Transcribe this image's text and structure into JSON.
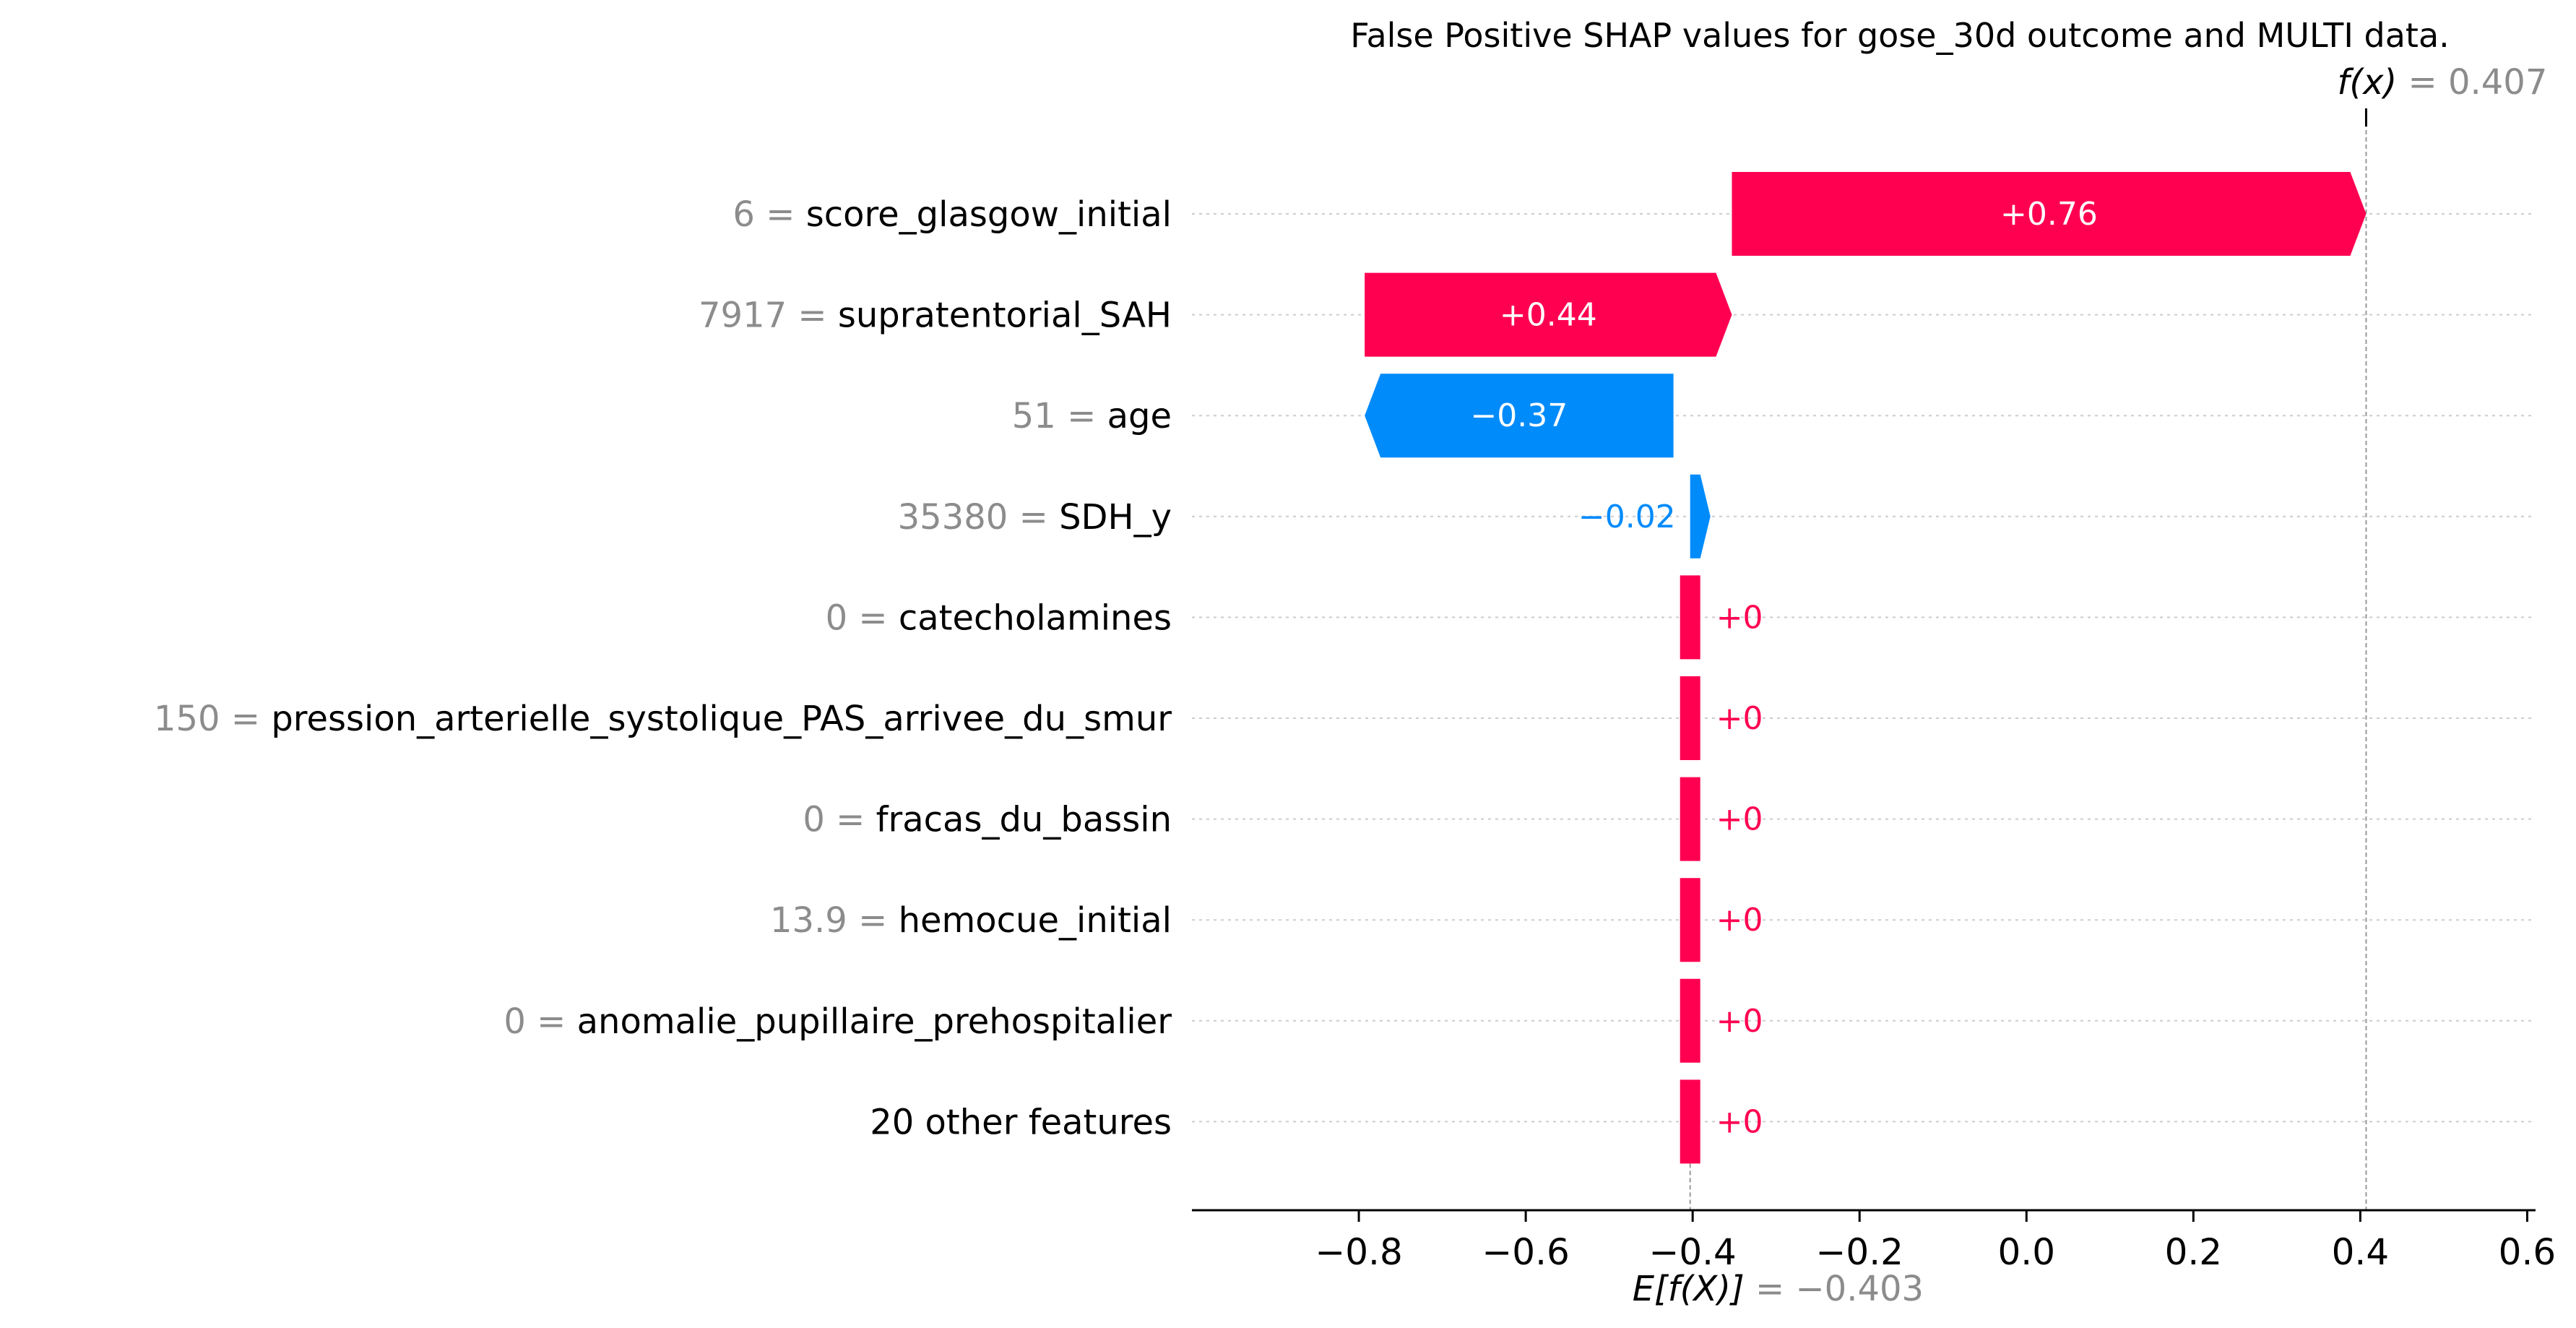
{
  "chart_data": {
    "type": "waterfall",
    "title": "False Positive SHAP values for gose_30d outcome and MULTI data.",
    "fx_label": "f(x)",
    "fx_value": "0.407",
    "fx": 0.407,
    "base_label": "E[f(X)]",
    "base_value_text": "−0.403",
    "base": -0.403,
    "xlim": [
      -1.0,
      0.61
    ],
    "xticks": [
      -0.8,
      -0.6,
      -0.4,
      -0.2,
      0.0,
      0.2,
      0.4,
      0.6
    ],
    "xtick_labels": [
      "−0.8",
      "−0.6",
      "−0.4",
      "−0.2",
      "0.0",
      "0.2",
      "0.4",
      "0.6"
    ],
    "features": [
      {
        "value": "6",
        "name": "score_glasgow_initial",
        "shap": 0.76,
        "label": "+0.76"
      },
      {
        "value": "7917",
        "name": "supratentorial_SAH",
        "shap": 0.44,
        "label": "+0.44"
      },
      {
        "value": "51",
        "name": "age",
        "shap": -0.37,
        "label": "−0.37"
      },
      {
        "value": "35380",
        "name": "SDH_y",
        "shap": -0.02,
        "label": "−0.02"
      },
      {
        "value": "0",
        "name": "catecholamines",
        "shap": 0.0,
        "label": "+0"
      },
      {
        "value": "150",
        "name": "pression_arterielle_systolique_PAS_arrivee_du_smur",
        "shap": 0.0,
        "label": "+0"
      },
      {
        "value": "0",
        "name": "fracas_du_bassin",
        "shap": 0.0,
        "label": "+0"
      },
      {
        "value": "13.9",
        "name": "hemocue_initial",
        "shap": 0.0,
        "label": "+0"
      },
      {
        "value": "0",
        "name": "anomalie_pupillaire_prehospitalier",
        "shap": 0.0,
        "label": "+0"
      },
      {
        "value": "",
        "name": "20 other features",
        "shap": 0.0,
        "label": "+0"
      }
    ],
    "colors": {
      "positive": "#ff0051",
      "negative": "#008bfb"
    }
  }
}
